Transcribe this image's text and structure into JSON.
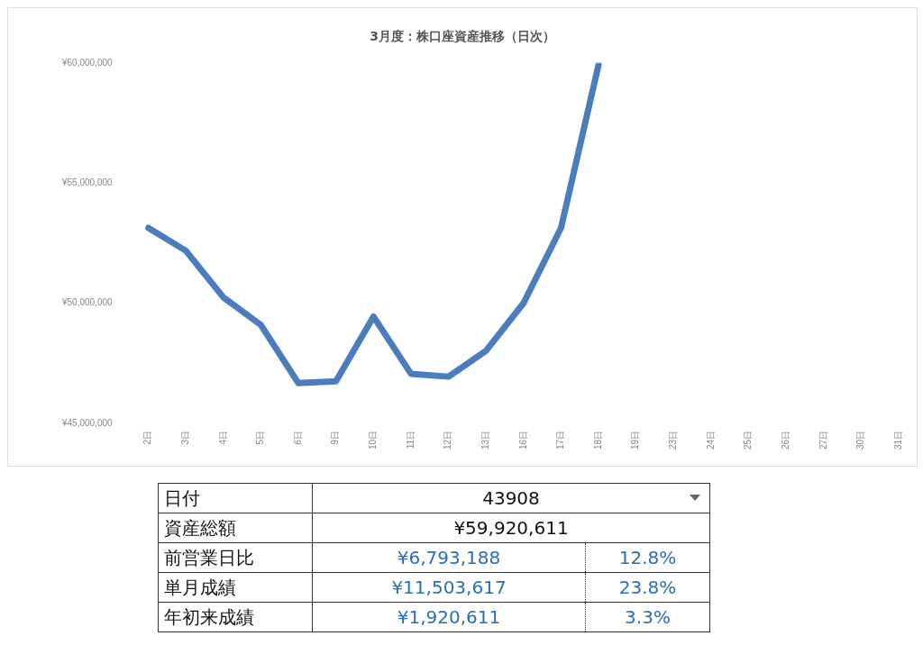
{
  "chart_data": {
    "type": "line",
    "title": "3月度：株口座資産推移（日次）",
    "categories": [
      "2日",
      "3日",
      "4日",
      "5日",
      "6日",
      "9日",
      "10日",
      "11日",
      "12日",
      "13日",
      "16日",
      "17日",
      "18日",
      "19日",
      "23日",
      "24日",
      "25日",
      "26日",
      "27日",
      "30日",
      "31日"
    ],
    "series": [
      {
        "color": "#4a7cc0",
        "values": [
          53130000,
          52180000,
          50240000,
          49090000,
          46670000,
          46750000,
          49440000,
          47060000,
          46940000,
          48020000,
          50000000,
          53130000,
          59920000,
          null,
          null,
          null,
          null,
          null,
          null,
          null,
          null
        ]
      }
    ],
    "ylim": [
      45000000,
      60000000
    ],
    "yticks": [
      {
        "value": 45000000,
        "label": "¥45,000,000"
      },
      {
        "value": 50000000,
        "label": "¥50,000,000"
      },
      {
        "value": 55000000,
        "label": "¥55,000,000"
      },
      {
        "value": 60000000,
        "label": "¥60,000,000"
      }
    ],
    "grid": false,
    "legend": false,
    "marker": "none",
    "line_style": "solid",
    "annotations": [
      "日付",
      "43908",
      "資産総額",
      "¥59,920,611",
      "前営業日比",
      "¥6,793,188",
      "12.8%",
      "単月成績",
      "¥11,503,617",
      "23.8%",
      "年初来成績",
      "¥1,920,611",
      "3.3%"
    ]
  }
}
